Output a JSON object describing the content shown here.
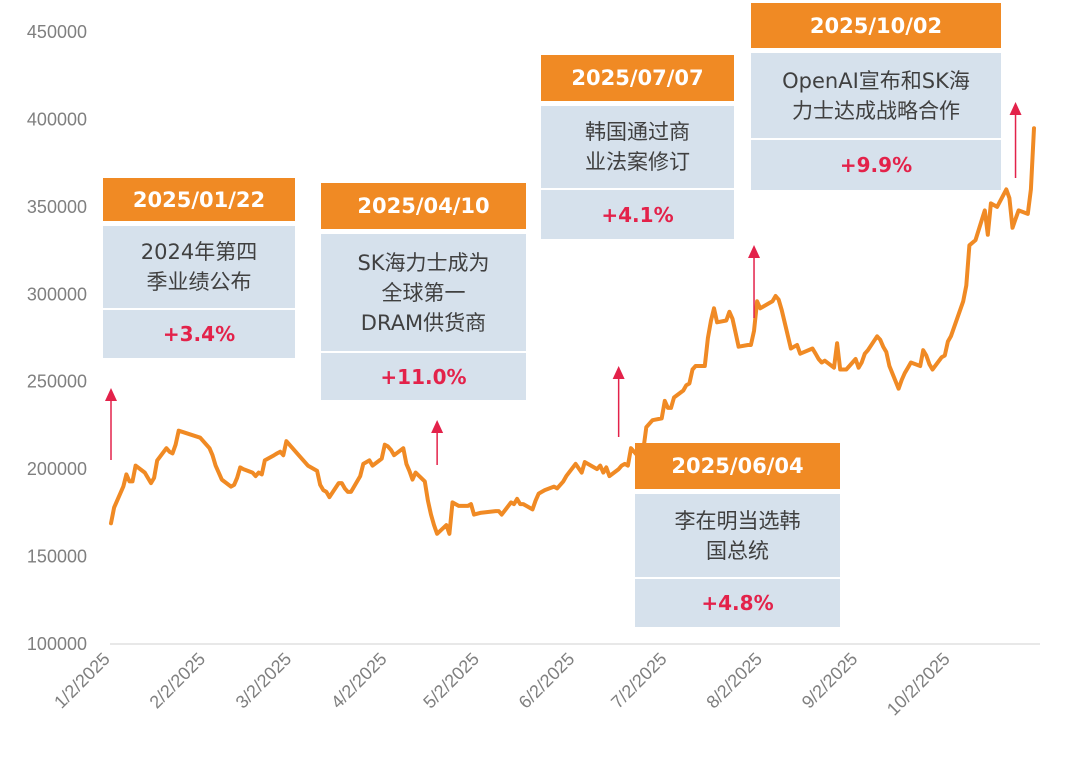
{
  "chart_data": {
    "type": "line",
    "title": "",
    "xlabel": "",
    "ylabel": "",
    "ylim": [
      100000,
      450000
    ],
    "y_ticks": [
      "100000",
      "150000",
      "200000",
      "250000",
      "300000",
      "350000",
      "400000",
      "450000"
    ],
    "x_tick_labels": [
      "1/2/2025",
      "2/2/2025",
      "3/2/2025",
      "4/2/2025",
      "5/2/2025",
      "6/2/2025",
      "7/2/2025",
      "8/2/2025",
      "9/2/2025",
      "10/2/2025"
    ],
    "grid": false,
    "line_color": "#f08a24",
    "series": [
      {
        "points": [
          [
            "2025-01-02",
            169000
          ],
          [
            "2025-01-03",
            178000
          ],
          [
            "2025-01-06",
            190000
          ],
          [
            "2025-01-07",
            197000
          ],
          [
            "2025-01-08",
            193000
          ],
          [
            "2025-01-09",
            193000
          ],
          [
            "2025-01-10",
            202000
          ],
          [
            "2025-01-13",
            198000
          ],
          [
            "2025-01-14",
            195000
          ],
          [
            "2025-01-15",
            192000
          ],
          [
            "2025-01-16",
            195000
          ],
          [
            "2025-01-17",
            205000
          ],
          [
            "2025-01-20",
            212000
          ],
          [
            "2025-01-21",
            210000
          ],
          [
            "2025-01-22",
            209000
          ],
          [
            "2025-01-23",
            214000
          ],
          [
            "2025-01-24",
            222000
          ],
          [
            "2025-01-31",
            218000
          ],
          [
            "2025-02-03",
            212000
          ],
          [
            "2025-02-04",
            208000
          ],
          [
            "2025-02-05",
            202000
          ],
          [
            "2025-02-06",
            198000
          ],
          [
            "2025-02-07",
            194000
          ],
          [
            "2025-02-10",
            190000
          ],
          [
            "2025-02-11",
            191000
          ],
          [
            "2025-02-12",
            195000
          ],
          [
            "2025-02-13",
            201000
          ],
          [
            "2025-02-14",
            200000
          ],
          [
            "2025-02-17",
            198000
          ],
          [
            "2025-02-18",
            196000
          ],
          [
            "2025-02-19",
            198000
          ],
          [
            "2025-02-20",
            197000
          ],
          [
            "2025-02-21",
            205000
          ],
          [
            "2025-02-24",
            208000
          ],
          [
            "2025-02-25",
            209000
          ],
          [
            "2025-02-26",
            210000
          ],
          [
            "2025-02-27",
            208000
          ],
          [
            "2025-02-28",
            216000
          ],
          [
            "2025-03-04",
            208000
          ],
          [
            "2025-03-05",
            206000
          ],
          [
            "2025-03-06",
            204000
          ],
          [
            "2025-03-07",
            202000
          ],
          [
            "2025-03-10",
            199000
          ],
          [
            "2025-03-11",
            191000
          ],
          [
            "2025-03-12",
            188000
          ],
          [
            "2025-03-13",
            187000
          ],
          [
            "2025-03-14",
            184000
          ],
          [
            "2025-03-17",
            192000
          ],
          [
            "2025-03-18",
            192000
          ],
          [
            "2025-03-19",
            189000
          ],
          [
            "2025-03-20",
            187000
          ],
          [
            "2025-03-21",
            187000
          ],
          [
            "2025-03-24",
            196000
          ],
          [
            "2025-03-25",
            203000
          ],
          [
            "2025-03-26",
            204000
          ],
          [
            "2025-03-27",
            205000
          ],
          [
            "2025-03-28",
            202000
          ],
          [
            "2025-03-31",
            206000
          ],
          [
            "2025-04-01",
            214000
          ],
          [
            "2025-04-02",
            213000
          ],
          [
            "2025-04-03",
            211000
          ],
          [
            "2025-04-04",
            208000
          ],
          [
            "2025-04-07",
            212000
          ],
          [
            "2025-04-08",
            203000
          ],
          [
            "2025-04-09",
            199000
          ],
          [
            "2025-04-10",
            194000
          ],
          [
            "2025-04-11",
            198000
          ],
          [
            "2025-04-14",
            193000
          ],
          [
            "2025-04-15",
            182000
          ],
          [
            "2025-04-16",
            174000
          ],
          [
            "2025-04-17",
            168000
          ],
          [
            "2025-04-18",
            163000
          ],
          [
            "2025-04-21",
            168000
          ],
          [
            "2025-04-22",
            163000
          ],
          [
            "2025-04-23",
            181000
          ],
          [
            "2025-04-24",
            180000
          ],
          [
            "2025-04-25",
            179000
          ],
          [
            "2025-04-28",
            179000
          ],
          [
            "2025-04-29",
            180000
          ],
          [
            "2025-04-30",
            174000
          ],
          [
            "2025-05-02",
            175000
          ],
          [
            "2025-05-07",
            176000
          ],
          [
            "2025-05-08",
            176000
          ],
          [
            "2025-05-09",
            174000
          ],
          [
            "2025-05-12",
            181000
          ],
          [
            "2025-05-13",
            180000
          ],
          [
            "2025-05-14",
            183000
          ],
          [
            "2025-05-15",
            180000
          ],
          [
            "2025-05-16",
            180000
          ],
          [
            "2025-05-19",
            177000
          ],
          [
            "2025-05-20",
            182000
          ],
          [
            "2025-05-21",
            186000
          ],
          [
            "2025-05-22",
            187000
          ],
          [
            "2025-05-23",
            188000
          ],
          [
            "2025-05-26",
            190000
          ],
          [
            "2025-05-27",
            189000
          ],
          [
            "2025-05-28",
            191000
          ],
          [
            "2025-05-29",
            193000
          ],
          [
            "2025-05-30",
            196000
          ],
          [
            "2025-06-02",
            203000
          ],
          [
            "2025-06-04",
            198000
          ],
          [
            "2025-06-05",
            204000
          ],
          [
            "2025-06-09",
            200000
          ],
          [
            "2025-06-10",
            202000
          ],
          [
            "2025-06-11",
            198000
          ],
          [
            "2025-06-12",
            201000
          ],
          [
            "2025-06-13",
            196000
          ],
          [
            "2025-06-16",
            200000
          ],
          [
            "2025-06-17",
            202000
          ],
          [
            "2025-06-18",
            203000
          ],
          [
            "2025-06-19",
            202000
          ],
          [
            "2025-06-20",
            212000
          ],
          [
            "2025-06-23",
            206000
          ],
          [
            "2025-06-24",
            211000
          ],
          [
            "2025-06-25",
            224000
          ],
          [
            "2025-06-26",
            226000
          ],
          [
            "2025-06-27",
            228000
          ],
          [
            "2025-06-30",
            229000
          ],
          [
            "2025-07-01",
            239000
          ],
          [
            "2025-07-02",
            235000
          ],
          [
            "2025-07-03",
            235000
          ],
          [
            "2025-07-04",
            241000
          ],
          [
            "2025-07-07",
            245000
          ],
          [
            "2025-07-08",
            248000
          ],
          [
            "2025-07-09",
            249000
          ],
          [
            "2025-07-10",
            257000
          ],
          [
            "2025-07-11",
            259000
          ],
          [
            "2025-07-14",
            259000
          ],
          [
            "2025-07-15",
            275000
          ],
          [
            "2025-07-16",
            285000
          ],
          [
            "2025-07-17",
            292000
          ],
          [
            "2025-07-18",
            284000
          ],
          [
            "2025-07-21",
            285000
          ],
          [
            "2025-07-22",
            290000
          ],
          [
            "2025-07-23",
            286000
          ],
          [
            "2025-07-24",
            278000
          ],
          [
            "2025-07-25",
            270000
          ],
          [
            "2025-07-28",
            271000
          ],
          [
            "2025-07-29",
            271000
          ],
          [
            "2025-07-30",
            279000
          ],
          [
            "2025-07-31",
            296000
          ],
          [
            "2025-08-01",
            292000
          ],
          [
            "2025-08-04",
            295000
          ],
          [
            "2025-08-05",
            296000
          ],
          [
            "2025-08-06",
            299000
          ],
          [
            "2025-08-07",
            297000
          ],
          [
            "2025-08-08",
            291000
          ],
          [
            "2025-08-11",
            269000
          ],
          [
            "2025-08-12",
            270000
          ],
          [
            "2025-08-13",
            271000
          ],
          [
            "2025-08-14",
            266000
          ],
          [
            "2025-08-18",
            269000
          ],
          [
            "2025-08-19",
            266000
          ],
          [
            "2025-08-20",
            263000
          ],
          [
            "2025-08-21",
            261000
          ],
          [
            "2025-08-22",
            262000
          ],
          [
            "2025-08-25",
            258000
          ],
          [
            "2025-08-26",
            272000
          ],
          [
            "2025-08-27",
            257000
          ],
          [
            "2025-08-28",
            257000
          ],
          [
            "2025-08-29",
            257000
          ],
          [
            "2025-09-01",
            263000
          ],
          [
            "2025-09-02",
            258000
          ],
          [
            "2025-09-03",
            261000
          ],
          [
            "2025-09-04",
            266000
          ],
          [
            "2025-09-05",
            268000
          ],
          [
            "2025-09-08",
            276000
          ],
          [
            "2025-09-09",
            274000
          ],
          [
            "2025-09-10",
            270000
          ],
          [
            "2025-09-11",
            267000
          ],
          [
            "2025-09-12",
            259000
          ],
          [
            "2025-09-15",
            246000
          ],
          [
            "2025-09-16",
            251000
          ],
          [
            "2025-09-17",
            255000
          ],
          [
            "2025-09-18",
            258000
          ],
          [
            "2025-09-19",
            261000
          ],
          [
            "2025-09-22",
            259000
          ],
          [
            "2025-09-23",
            268000
          ],
          [
            "2025-09-24",
            265000
          ],
          [
            "2025-09-25",
            260000
          ],
          [
            "2025-09-26",
            257000
          ],
          [
            "2025-09-29",
            264000
          ],
          [
            "2025-09-30",
            265000
          ],
          [
            "2025-10-01",
            273000
          ],
          [
            "2025-10-02",
            276000
          ],
          [
            "2025-10-06",
            296000
          ],
          [
            "2025-10-07",
            305000
          ],
          [
            "2025-10-08",
            328000
          ],
          [
            "2025-10-10",
            331000
          ],
          [
            "2025-10-13",
            348000
          ],
          [
            "2025-10-14",
            334000
          ],
          [
            "2025-10-15",
            352000
          ],
          [
            "2025-10-16",
            351000
          ],
          [
            "2025-10-17",
            350000
          ],
          [
            "2025-10-20",
            360000
          ],
          [
            "2025-10-21",
            355000
          ],
          [
            "2025-10-22",
            338000
          ],
          [
            "2025-10-23",
            343000
          ],
          [
            "2025-10-24",
            348000
          ],
          [
            "2025-10-27",
            346000
          ],
          [
            "2025-10-28",
            360000
          ],
          [
            "2025-10-29",
            395000
          ]
        ]
      }
    ],
    "annotations": [
      {
        "date": "2025/01/22",
        "event": "2024年第四\n季业绩公布",
        "change": "+3.4%",
        "arrow_x": "2025-01-02"
      },
      {
        "date": "2025/04/10",
        "event": "SK海力士成为\n全球第一\nDRAM供货商",
        "change": "+11.0%",
        "arrow_x": "2025-04-18"
      },
      {
        "date": "2025/07/07",
        "event": "韩国通过商\n业法案修订",
        "change": "+4.1%",
        "arrow_x": "2025-07-30"
      },
      {
        "date": "2025/06/04",
        "event": "李在明当选韩\n国总统",
        "change": "+4.8%",
        "arrow_x": "2025-06-16"
      },
      {
        "date": "2025/10/02",
        "event": "OpenAI宣布和SK海\n力士达成战略合作",
        "change": "+9.9%",
        "arrow_x": "2025-10-23"
      }
    ],
    "arrow_color": "#e3224a"
  }
}
